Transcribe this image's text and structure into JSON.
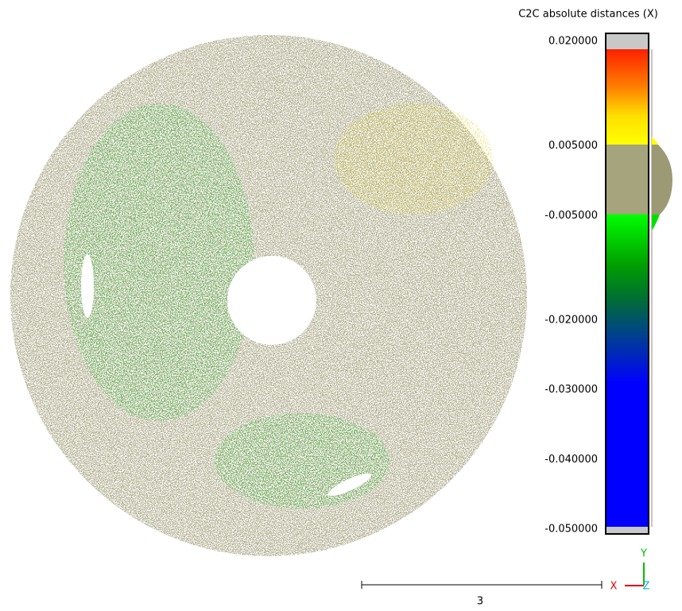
{
  "colorbar": {
    "title": "C2C absolute distances (X)",
    "range": [
      -0.05,
      0.02
    ],
    "ticks": [
      {
        "value": 0.02,
        "label": "0.020000"
      },
      {
        "value": 0.005,
        "label": "0.005000"
      },
      {
        "value": -0.005,
        "label": "-0.005000"
      },
      {
        "value": -0.02,
        "label": "-0.020000"
      },
      {
        "value": -0.03,
        "label": "-0.030000"
      },
      {
        "value": -0.04,
        "label": "-0.040000"
      },
      {
        "value": -0.05,
        "label": "-0.050000"
      }
    ]
  },
  "scale_bar": {
    "label": "3"
  },
  "axes_gizmo": {
    "x": "X",
    "y": "Y",
    "z": "Z"
  }
}
